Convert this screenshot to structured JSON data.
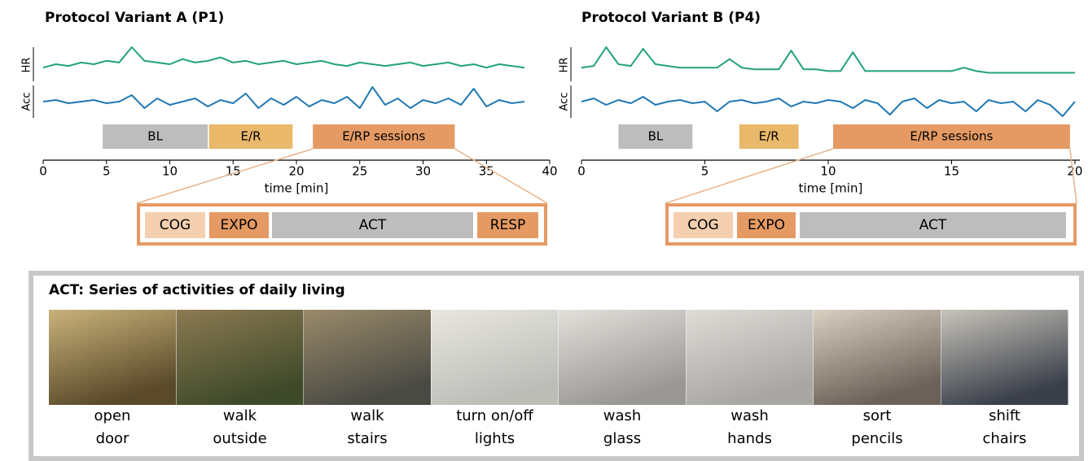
{
  "chart_data": [
    {
      "type": "line",
      "title": "Protocol Variant A (P1)",
      "xlabel": "time [min]",
      "xlim": [
        0,
        40
      ],
      "xticks": [
        0,
        5,
        10,
        15,
        20,
        25,
        30,
        35,
        40
      ],
      "ylim": [
        0,
        1
      ],
      "series": [
        {
          "name": "HR",
          "color": "#22a27a",
          "x": [
            0,
            1,
            2,
            3,
            4,
            5,
            6,
            7,
            8,
            9,
            10,
            11,
            12,
            13,
            14,
            15,
            16,
            17,
            18,
            19,
            20,
            21,
            22,
            23,
            24,
            25,
            26,
            27,
            28,
            29,
            30,
            31,
            32,
            33,
            34,
            35,
            36,
            37,
            38
          ],
          "values": [
            0.4,
            0.5,
            0.45,
            0.55,
            0.5,
            0.6,
            0.55,
            1.0,
            0.6,
            0.55,
            0.5,
            0.65,
            0.55,
            0.6,
            0.7,
            0.55,
            0.6,
            0.5,
            0.55,
            0.6,
            0.5,
            0.55,
            0.6,
            0.5,
            0.45,
            0.55,
            0.5,
            0.45,
            0.5,
            0.55,
            0.45,
            0.5,
            0.55,
            0.45,
            0.5,
            0.4,
            0.5,
            0.45,
            0.4
          ]
        },
        {
          "name": "Acc",
          "color": "#1f78b4",
          "x": [
            0,
            1,
            2,
            3,
            4,
            5,
            6,
            7,
            8,
            9,
            10,
            11,
            12,
            13,
            14,
            15,
            16,
            17,
            18,
            19,
            20,
            21,
            22,
            23,
            24,
            25,
            26,
            27,
            28,
            29,
            30,
            31,
            32,
            33,
            34,
            35,
            36,
            37,
            38
          ],
          "values": [
            0.5,
            0.55,
            0.45,
            0.5,
            0.55,
            0.45,
            0.5,
            0.7,
            0.3,
            0.6,
            0.4,
            0.5,
            0.6,
            0.35,
            0.55,
            0.45,
            0.75,
            0.3,
            0.6,
            0.4,
            0.65,
            0.35,
            0.55,
            0.45,
            0.65,
            0.3,
            0.95,
            0.4,
            0.6,
            0.3,
            0.55,
            0.45,
            0.6,
            0.4,
            0.9,
            0.35,
            0.55,
            0.45,
            0.5
          ]
        }
      ],
      "phases": [
        {
          "label": "BL",
          "start": 4.7,
          "end": 13,
          "color": "#bdbdbd"
        },
        {
          "label": "E/R",
          "start": 13.1,
          "end": 19.7,
          "color": "#e9b86a"
        },
        {
          "label": "E/RP sessions",
          "start": 21.3,
          "end": 32.5,
          "color": "#e59a64"
        }
      ],
      "zoom": [
        {
          "label": "COG",
          "color": "#f4cfb0"
        },
        {
          "label": "EXPO",
          "color": "#e59a64"
        },
        {
          "label": "ACT",
          "color": "#bdbdbd"
        },
        {
          "label": "RESP",
          "color": "#e59a64"
        }
      ]
    },
    {
      "type": "line",
      "title": "Protocol Variant B (P4)",
      "xlabel": "time [min]",
      "xlim": [
        0,
        20.2
      ],
      "xticks": [
        0,
        5,
        10,
        15,
        20
      ],
      "ylim": [
        0,
        1
      ],
      "series": [
        {
          "name": "HR",
          "color": "#22a27a",
          "x": [
            0,
            0.5,
            1,
            1.5,
            2,
            2.5,
            3,
            3.5,
            4,
            4.5,
            5,
            5.5,
            6,
            6.5,
            7,
            7.5,
            8,
            8.5,
            9,
            9.5,
            10,
            10.5,
            11,
            11.5,
            12,
            12.5,
            13,
            13.5,
            14,
            14.5,
            15,
            15.5,
            16,
            16.5,
            17,
            17.5,
            18,
            18.5,
            19,
            19.5,
            20
          ],
          "values": [
            0.4,
            0.45,
            1.0,
            0.5,
            0.45,
            0.95,
            0.5,
            0.45,
            0.4,
            0.4,
            0.4,
            0.4,
            0.65,
            0.4,
            0.35,
            0.35,
            0.35,
            0.9,
            0.35,
            0.35,
            0.3,
            0.3,
            0.85,
            0.3,
            0.3,
            0.3,
            0.3,
            0.3,
            0.3,
            0.3,
            0.3,
            0.4,
            0.3,
            0.25,
            0.25,
            0.25,
            0.25,
            0.25,
            0.25,
            0.25,
            0.25
          ]
        },
        {
          "name": "Acc",
          "color": "#1f78b4",
          "x": [
            0,
            0.5,
            1,
            1.5,
            2,
            2.5,
            3,
            3.5,
            4,
            4.5,
            5,
            5.5,
            6,
            6.5,
            7,
            7.5,
            8,
            8.5,
            9,
            9.5,
            10,
            10.5,
            11,
            11.5,
            12,
            12.5,
            13,
            13.5,
            14,
            14.5,
            15,
            15.5,
            16,
            16.5,
            17,
            17.5,
            18,
            18.5,
            19,
            19.5,
            20
          ],
          "values": [
            0.5,
            0.6,
            0.4,
            0.55,
            0.45,
            0.65,
            0.4,
            0.5,
            0.55,
            0.45,
            0.5,
            0.2,
            0.5,
            0.55,
            0.45,
            0.5,
            0.6,
            0.35,
            0.5,
            0.45,
            0.55,
            0.5,
            0.3,
            0.55,
            0.45,
            0.1,
            0.5,
            0.6,
            0.3,
            0.55,
            0.45,
            0.5,
            0.2,
            0.55,
            0.45,
            0.5,
            0.2,
            0.55,
            0.4,
            0.05,
            0.5
          ]
        }
      ],
      "phases": [
        {
          "label": "BL",
          "start": 1.5,
          "end": 4.5,
          "color": "#bdbdbd"
        },
        {
          "label": "E/R",
          "start": 6.4,
          "end": 8.8,
          "color": "#e9b86a"
        },
        {
          "label": "E/RP sessions",
          "start": 10.2,
          "end": 19.8,
          "color": "#e59a64"
        }
      ],
      "zoom": [
        {
          "label": "COG",
          "color": "#f4cfb0"
        },
        {
          "label": "EXPO",
          "color": "#e59a64"
        },
        {
          "label": "ACT",
          "color": "#bdbdbd"
        }
      ]
    }
  ],
  "act_panel": {
    "title": "ACT: Series of activities of daily living",
    "activities": [
      [
        "open",
        "door"
      ],
      [
        "walk",
        "outside"
      ],
      [
        "walk",
        "stairs"
      ],
      [
        "turn on/off",
        "lights"
      ],
      [
        "wash",
        "glass"
      ],
      [
        "wash",
        "hands"
      ],
      [
        "sort",
        "pencils"
      ],
      [
        "shift",
        "chairs"
      ]
    ]
  }
}
